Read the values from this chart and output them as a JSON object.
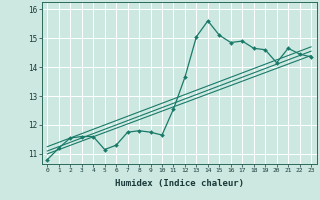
{
  "title": "",
  "xlabel": "Humidex (Indice chaleur)",
  "ylabel": "",
  "bg_color": "#cce8e0",
  "grid_color": "#ffffff",
  "line_color": "#1a7a6a",
  "marker_color": "#1a7a6a",
  "xlim": [
    -0.5,
    23.5
  ],
  "ylim": [
    10.65,
    16.25
  ],
  "yticks": [
    11,
    12,
    13,
    14,
    15,
    16
  ],
  "xticks": [
    0,
    1,
    2,
    3,
    4,
    5,
    6,
    7,
    8,
    9,
    10,
    11,
    12,
    13,
    14,
    15,
    16,
    17,
    18,
    19,
    20,
    21,
    22,
    23
  ],
  "curve_x": [
    0,
    1,
    2,
    3,
    4,
    5,
    6,
    7,
    8,
    9,
    10,
    11,
    12,
    13,
    14,
    15,
    16,
    17,
    18,
    19,
    20,
    21,
    22,
    23
  ],
  "curve_y": [
    10.8,
    11.2,
    11.55,
    11.6,
    11.6,
    11.15,
    11.3,
    11.75,
    11.8,
    11.75,
    11.65,
    12.55,
    13.65,
    15.05,
    15.6,
    15.1,
    14.85,
    14.9,
    14.65,
    14.6,
    14.15,
    14.65,
    14.45,
    14.35
  ],
  "line1_x": [
    0,
    23
  ],
  "line1_y": [
    11.0,
    14.4
  ],
  "line2_x": [
    0,
    23
  ],
  "line2_y": [
    11.1,
    14.55
  ],
  "line3_x": [
    0,
    23
  ],
  "line3_y": [
    11.25,
    14.7
  ]
}
